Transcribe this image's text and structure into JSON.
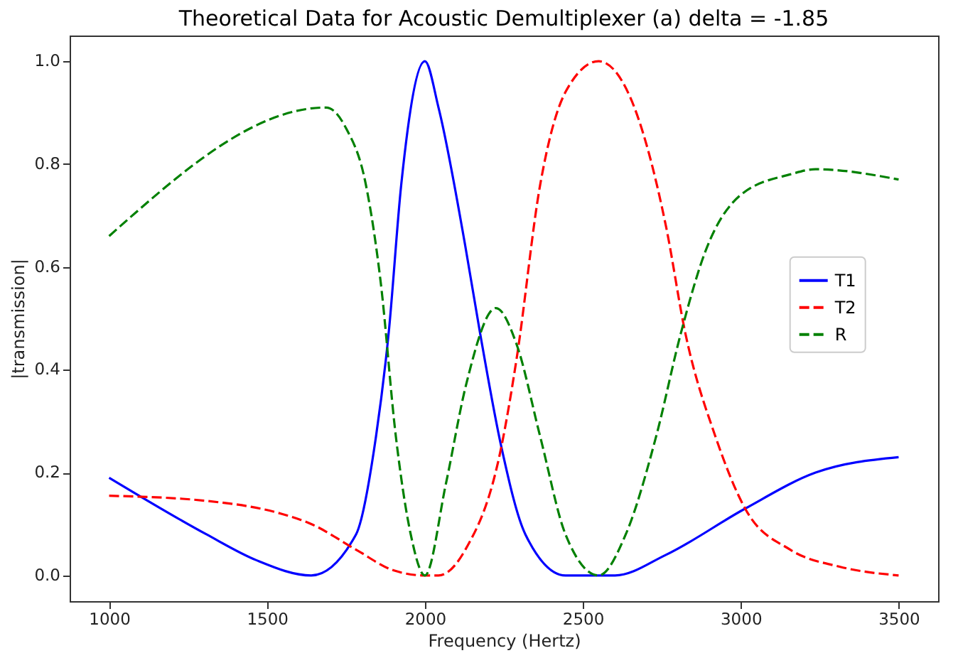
{
  "chart_data": {
    "type": "line",
    "title": "Theoretical Data for Acoustic Demultiplexer (a) delta = -1.85",
    "xlabel": "Frequency (Hertz)",
    "ylabel": "|transmission|",
    "xlim": [
      875,
      3625
    ],
    "xticks": [
      1000,
      1500,
      2000,
      2500,
      3000,
      3500
    ],
    "ylim": [
      -0.05,
      1.05
    ],
    "yticks": [
      {
        "value": 0,
        "label": "0.0"
      },
      {
        "value": 0.2,
        "label": "0.2"
      },
      {
        "value": 0.4,
        "label": "0.4"
      },
      {
        "value": 0.6,
        "label": "0.6"
      },
      {
        "value": 0.8,
        "label": "0.8"
      },
      {
        "value": 1,
        "label": "1.0"
      }
    ],
    "grid": false,
    "legend": "right",
    "marker": "none",
    "series": [
      {
        "name": "T1",
        "color": "#0000ff",
        "line_style": "solid",
        "x": [
          1000,
          1308,
          1465,
          1640,
          1782,
          1845,
          1885,
          1925,
          2000,
          2043,
          2128,
          2175,
          2242,
          2318,
          2445,
          2602,
          2763,
          3014,
          3237,
          3500
        ],
        "values": [
          0.19,
          0.08,
          0.03,
          0.0,
          0.08,
          0.27,
          0.47,
          0.76,
          1.0,
          0.91,
          0.64,
          0.47,
          0.25,
          0.08,
          0.0,
          0.0,
          0.04,
          0.13,
          0.2,
          0.23
        ]
      },
      {
        "name": "T2",
        "color": "#ff0000",
        "line_style": "dashed",
        "x": [
          1000,
          1308,
          1545,
          1640,
          1782,
          1900,
          2000,
          2043,
          2128,
          2242,
          2290,
          2365,
          2445,
          2550,
          2650,
          2763,
          2825,
          2920,
          3014,
          3157,
          3313,
          3500
        ],
        "values": [
          0.155,
          0.145,
          0.12,
          0.1,
          0.05,
          0.01,
          0.0,
          0.0,
          0.05,
          0.25,
          0.42,
          0.76,
          0.94,
          1.0,
          0.93,
          0.68,
          0.47,
          0.27,
          0.13,
          0.05,
          0.017,
          0.0
        ]
      },
      {
        "name": "R",
        "color": "#008000",
        "line_style": "dashed",
        "x": [
          1000,
          1687,
          1750,
          1813,
          1860,
          1908,
          1955,
          2000,
          2067,
          2130,
          2225,
          2290,
          2365,
          2445,
          2550,
          2636,
          2732,
          2810,
          2888,
          3000,
          3157,
          3237,
          3500
        ],
        "values": [
          0.66,
          0.91,
          0.87,
          0.76,
          0.57,
          0.27,
          0.08,
          0.0,
          0.18,
          0.37,
          0.52,
          0.45,
          0.27,
          0.08,
          0.0,
          0.08,
          0.27,
          0.47,
          0.63,
          0.74,
          0.78,
          0.79,
          0.77
        ]
      }
    ]
  }
}
